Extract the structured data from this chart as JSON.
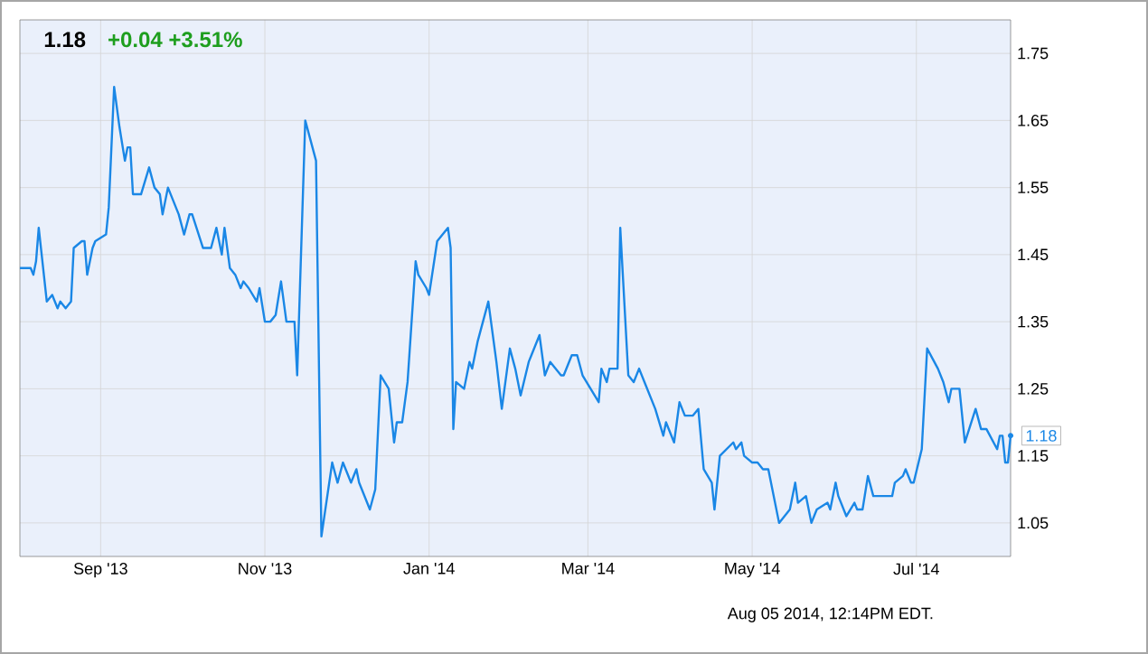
{
  "chart_data": {
    "type": "line",
    "title": "1.18",
    "subtitle": "+0.04  +3.51%",
    "annotations": [
      {
        "text": "1.18",
        "x": "2014-08-05",
        "y": 1.18
      },
      "Aug 05 2014, 12:14PM EDT."
    ],
    "x": [
      "2013-08-02",
      "2013-08-06",
      "2013-08-07",
      "2013-08-08",
      "2013-08-09",
      "2013-08-12",
      "2013-08-14",
      "2013-08-16",
      "2013-08-17",
      "2013-08-19",
      "2013-08-21",
      "2013-08-22",
      "2013-08-25",
      "2013-08-26",
      "2013-08-27",
      "2013-08-29",
      "2013-08-30",
      "2013-09-03",
      "2013-09-04",
      "2013-09-06",
      "2013-09-08",
      "2013-09-10",
      "2013-09-11",
      "2013-09-12",
      "2013-09-13",
      "2013-09-16",
      "2013-09-19",
      "2013-09-21",
      "2013-09-23",
      "2013-09-24",
      "2013-09-26",
      "2013-09-30",
      "2013-10-02",
      "2013-10-04",
      "2013-10-05",
      "2013-10-09",
      "2013-10-12",
      "2013-10-14",
      "2013-10-16",
      "2013-10-17",
      "2013-10-19",
      "2013-10-21",
      "2013-10-23",
      "2013-10-24",
      "2013-10-26",
      "2013-10-29",
      "2013-10-30",
      "2013-11-01",
      "2013-11-03",
      "2013-11-05",
      "2013-11-07",
      "2013-11-09",
      "2013-11-12",
      "2013-11-13",
      "2013-11-16",
      "2013-11-20",
      "2013-11-22",
      "2013-11-26",
      "2013-11-28",
      "2013-11-30",
      "2013-12-03",
      "2013-12-05",
      "2013-12-06",
      "2013-12-10",
      "2013-12-12",
      "2013-12-14",
      "2013-12-17",
      "2013-12-19",
      "2013-12-20",
      "2013-12-22",
      "2013-12-24",
      "2013-12-27",
      "2013-12-28",
      "2013-12-31",
      "2014-01-01",
      "2014-01-04",
      "2014-01-08",
      "2014-01-09",
      "2014-01-10",
      "2014-01-11",
      "2014-01-14",
      "2014-01-16",
      "2014-01-17",
      "2014-01-19",
      "2014-01-23",
      "2014-01-26",
      "2014-01-28",
      "2014-01-31",
      "2014-02-02",
      "2014-02-04",
      "2014-02-07",
      "2014-02-08",
      "2014-02-11",
      "2014-02-13",
      "2014-02-15",
      "2014-02-19",
      "2014-02-20",
      "2014-02-23",
      "2014-02-25",
      "2014-02-27",
      "2014-03-05",
      "2014-03-06",
      "2014-03-08",
      "2014-03-09",
      "2014-03-12",
      "2014-03-13",
      "2014-03-16",
      "2014-03-18",
      "2014-03-20",
      "2014-03-22",
      "2014-03-26",
      "2014-03-29",
      "2014-03-30",
      "2014-04-02",
      "2014-04-04",
      "2014-04-06",
      "2014-04-09",
      "2014-04-11",
      "2014-04-13",
      "2014-04-16",
      "2014-04-17",
      "2014-04-19",
      "2014-04-24",
      "2014-04-25",
      "2014-04-27",
      "2014-04-28",
      "2014-05-01",
      "2014-05-03",
      "2014-05-05",
      "2014-05-07",
      "2014-05-11",
      "2014-05-15",
      "2014-05-17",
      "2014-05-18",
      "2014-05-21",
      "2014-05-23",
      "2014-05-25",
      "2014-05-29",
      "2014-05-30",
      "2014-06-01",
      "2014-06-02",
      "2014-06-05",
      "2014-06-08",
      "2014-06-09",
      "2014-06-11",
      "2014-06-13",
      "2014-06-15",
      "2014-06-22",
      "2014-06-23",
      "2014-06-26",
      "2014-06-27",
      "2014-06-29",
      "2014-06-30",
      "2014-07-03",
      "2014-07-05",
      "2014-07-09",
      "2014-07-11",
      "2014-07-13",
      "2014-07-14",
      "2014-07-17",
      "2014-07-19",
      "2014-07-23",
      "2014-07-25",
      "2014-07-27",
      "2014-07-31",
      "2014-08-01",
      "2014-08-02",
      "2014-08-03",
      "2014-08-04",
      "2014-08-05"
    ],
    "series": [
      {
        "color": "#1a87e6",
        "values": [
          1.43,
          1.43,
          1.42,
          1.44,
          1.49,
          1.38,
          1.39,
          1.37,
          1.38,
          1.37,
          1.38,
          1.46,
          1.47,
          1.47,
          1.42,
          1.46,
          1.47,
          1.48,
          1.52,
          1.7,
          1.64,
          1.59,
          1.61,
          1.61,
          1.54,
          1.54,
          1.58,
          1.55,
          1.54,
          1.51,
          1.55,
          1.51,
          1.48,
          1.51,
          1.51,
          1.46,
          1.46,
          1.49,
          1.45,
          1.49,
          1.43,
          1.42,
          1.4,
          1.41,
          1.4,
          1.38,
          1.4,
          1.35,
          1.35,
          1.36,
          1.41,
          1.35,
          1.35,
          1.27,
          1.65,
          1.59,
          1.03,
          1.14,
          1.11,
          1.14,
          1.11,
          1.13,
          1.11,
          1.07,
          1.1,
          1.27,
          1.25,
          1.17,
          1.2,
          1.2,
          1.26,
          1.44,
          1.42,
          1.4,
          1.39,
          1.47,
          1.49,
          1.46,
          1.19,
          1.26,
          1.25,
          1.29,
          1.28,
          1.32,
          1.38,
          1.29,
          1.22,
          1.31,
          1.28,
          1.24,
          1.29,
          1.3,
          1.33,
          1.27,
          1.29,
          1.27,
          1.27,
          1.3,
          1.3,
          1.27,
          1.23,
          1.28,
          1.26,
          1.28,
          1.28,
          1.49,
          1.27,
          1.26,
          1.28,
          1.26,
          1.22,
          1.18,
          1.2,
          1.17,
          1.23,
          1.21,
          1.21,
          1.22,
          1.13,
          1.11,
          1.07,
          1.15,
          1.17,
          1.16,
          1.17,
          1.15,
          1.14,
          1.14,
          1.13,
          1.13,
          1.05,
          1.07,
          1.11,
          1.08,
          1.09,
          1.05,
          1.07,
          1.08,
          1.07,
          1.11,
          1.09,
          1.06,
          1.08,
          1.07,
          1.07,
          1.12,
          1.09,
          1.09,
          1.11,
          1.12,
          1.13,
          1.11,
          1.11,
          1.16,
          1.31,
          1.28,
          1.26,
          1.23,
          1.25,
          1.25,
          1.17,
          1.22,
          1.19,
          1.19,
          1.16,
          1.18,
          1.18,
          1.14,
          1.14,
          1.18
        ]
      }
    ],
    "xlim": [
      "2013-08-02",
      "2014-08-05"
    ],
    "xticks": [
      {
        "value": "2013-09-01",
        "label": "Sep '13"
      },
      {
        "value": "2013-11-01",
        "label": "Nov '13"
      },
      {
        "value": "2014-01-01",
        "label": "Jan '14"
      },
      {
        "value": "2014-03-01",
        "label": "Mar '14"
      },
      {
        "value": "2014-05-01",
        "label": "May '14"
      },
      {
        "value": "2014-07-01",
        "label": "Jul '14"
      }
    ],
    "ylim": [
      1.0,
      1.8
    ],
    "yticks": [
      1.05,
      1.15,
      1.25,
      1.35,
      1.45,
      1.55,
      1.65,
      1.75
    ],
    "grid": true,
    "legend": false,
    "marker": "none",
    "line_style": "solid"
  }
}
